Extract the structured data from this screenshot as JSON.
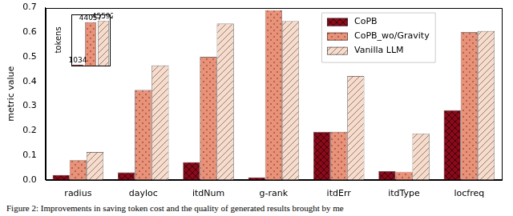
{
  "caption": "Figure 2: Improvements in saving token cost and the quality of generated results brought by me",
  "chart_data": [
    {
      "type": "bar",
      "ylabel": "metric value",
      "categories": [
        "radius",
        "dayloc",
        "itdNum",
        "g-rank",
        "itdErr",
        "itdType",
        "locfreq"
      ],
      "series": [
        {
          "name": "CoPB",
          "color": "#8b0a1a",
          "values": [
            0.02,
            0.03,
            0.072,
            0.01,
            0.195,
            0.035,
            0.283
          ]
        },
        {
          "name": "CoPB_wo/Gravity",
          "color": "#e8927a",
          "values": [
            0.08,
            0.365,
            0.5,
            0.69,
            0.195,
            0.033,
            0.6
          ]
        },
        {
          "name": "Vanilla LLM",
          "color": "#f6dccd",
          "values": [
            0.113,
            0.465,
            0.635,
            0.645,
            0.422,
            0.188,
            0.605
          ]
        }
      ],
      "ylim": [
        0,
        0.7
      ],
      "yticks": [
        {
          "value": 0,
          "label": "0.0"
        },
        0.1,
        0.2,
        0.3,
        0.4,
        0.5,
        0.6,
        0.7
      ],
      "grid": false,
      "legend": "upper right"
    },
    {
      "type": "bar",
      "ylabel": "tokens",
      "categories": [
        null,
        null,
        null
      ],
      "values": [
        1034,
        44057,
        45592
      ],
      "colors": [
        "#8b0a1a",
        "#e8927a",
        "#f6dccd"
      ],
      "ylim": [
        0,
        52000
      ],
      "data_labels": true,
      "tick_labels": false
    }
  ]
}
